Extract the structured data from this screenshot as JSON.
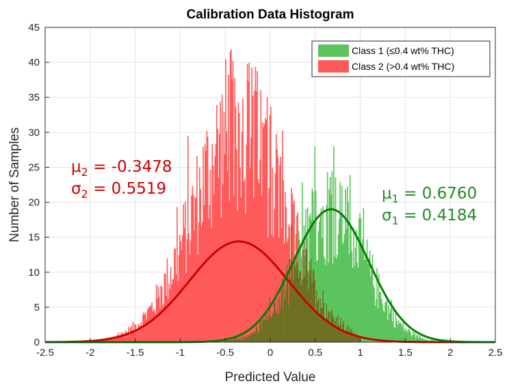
{
  "chart_data": {
    "type": "histogram",
    "title": "Calibration Data Histogram",
    "xlabel": "Predicted Value",
    "ylabel": "Number of Samples",
    "xlim": [
      -2.5,
      2.5
    ],
    "ylim": [
      0,
      45
    ],
    "xticks": [
      -2.5,
      -2,
      -1.5,
      -1,
      -0.5,
      0,
      0.5,
      1,
      1.5,
      2,
      2.5
    ],
    "xtick_labels": [
      "-2.5",
      "-2",
      "-1.5",
      "-1",
      "-0.5",
      "0",
      "0.5",
      "1",
      "1.5",
      "2",
      "2.5"
    ],
    "yticks": [
      0,
      5,
      10,
      15,
      20,
      25,
      30,
      35,
      40,
      45
    ],
    "ytick_labels": [
      "0",
      "5",
      "10",
      "15",
      "20",
      "25",
      "30",
      "35",
      "40",
      "45"
    ],
    "grid": true,
    "legend_position": "top-right",
    "bin_width": 0.01,
    "series": [
      {
        "name": "Class 1 (≤0.4 wt% THC)",
        "color": "#5cc45c",
        "fit_color": "#008000",
        "mean": 0.676,
        "std": 0.4184,
        "fit_peak": 19.0,
        "hist_peak": 28,
        "hist_range": [
          -0.5,
          1.9
        ]
      },
      {
        "name": "Class 2 (>0.4 wt% THC)",
        "color": "#ff5a5a",
        "fit_color": "#cc0000",
        "mean": -0.3478,
        "std": 0.5519,
        "fit_peak": 14.4,
        "hist_peak": 44,
        "hist_range": [
          -2.0,
          1.0
        ]
      }
    ],
    "overlap_color": "#6b6b1e"
  },
  "annotations": {
    "class2": {
      "mu_prefix": "μ",
      "mu_sub": "2",
      "mu_value": " = -0.3478",
      "sigma_prefix": "σ",
      "sigma_sub": "2",
      "sigma_value": " =  0.5519",
      "color": "#cc0000"
    },
    "class1": {
      "mu_prefix": "μ",
      "mu_sub": "1",
      "mu_value": " = 0.6760",
      "sigma_prefix": "σ",
      "sigma_sub": "1",
      "sigma_value": " = 0.4184",
      "color": "#228b22"
    }
  }
}
